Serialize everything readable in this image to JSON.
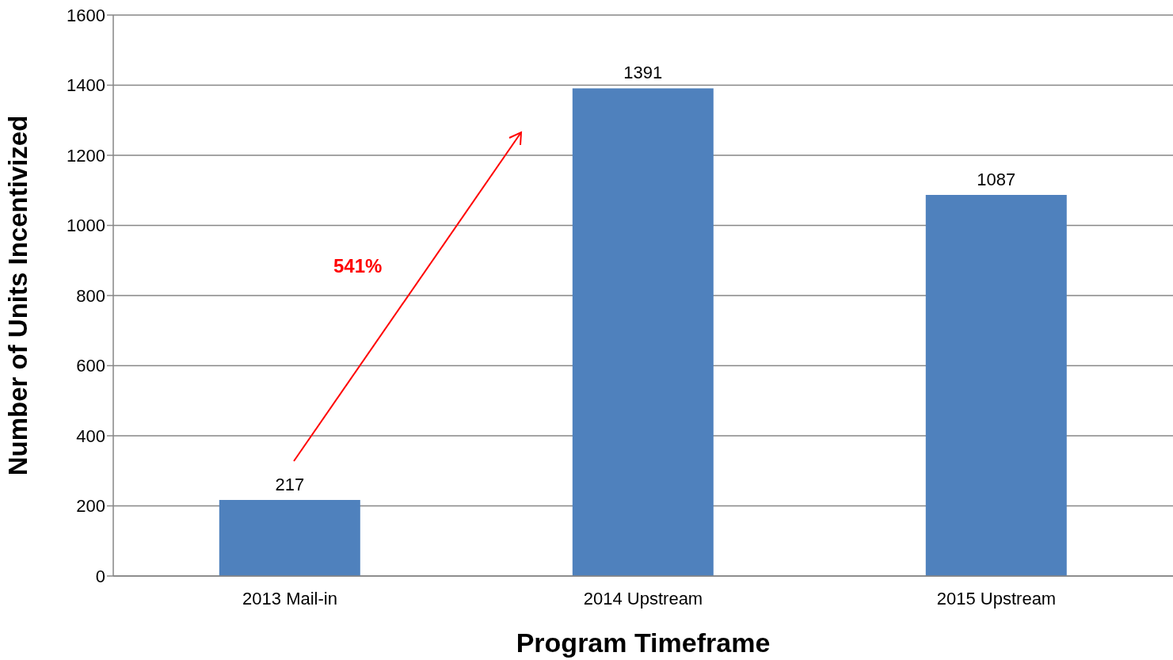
{
  "chart_data": {
    "type": "bar",
    "xlabel": "Program Timeframe",
    "ylabel": "Number of Units Incentivized",
    "categories": [
      "2013 Mail-in",
      "2014 Upstream",
      "2015 Upstream"
    ],
    "values": [
      217,
      1391,
      1087
    ],
    "color": "#4f81bd",
    "ylim": [
      0,
      1600
    ],
    "yticks": [
      0,
      200,
      400,
      600,
      800,
      1000,
      1200,
      1400,
      1600
    ],
    "grid": "y",
    "data_labels": true,
    "annotations": [
      "541%"
    ]
  }
}
